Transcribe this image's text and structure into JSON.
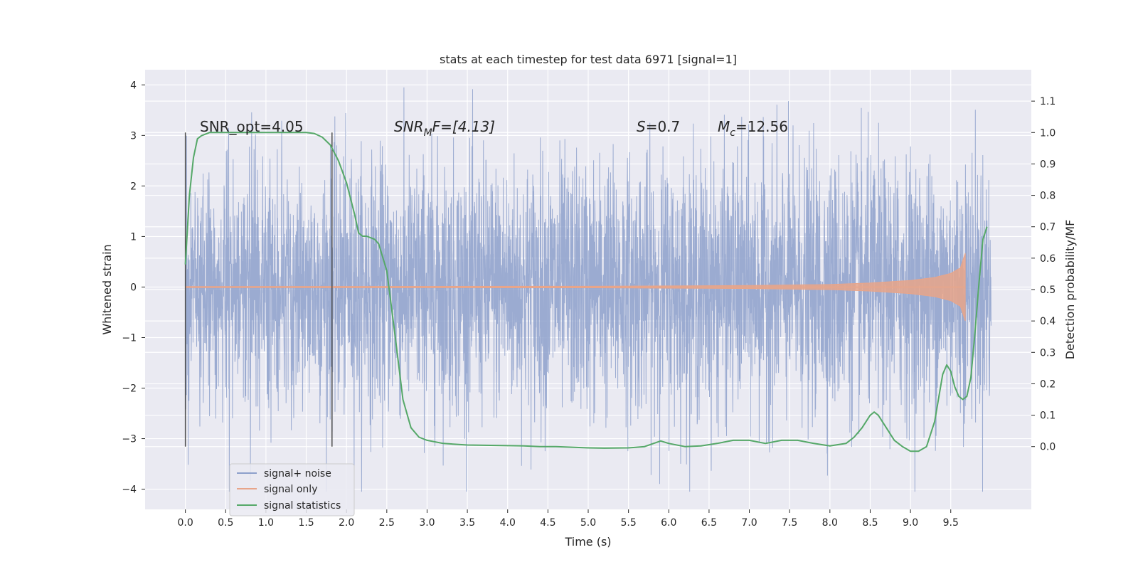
{
  "chart_data": {
    "type": "line",
    "title": "stats at each timestep for test data 6971 [signal=1]",
    "xlabel": "Time (s)",
    "ylabel": "Whitened strain",
    "ylabel_right": "Detection probability/MF",
    "xlim": [
      -0.5,
      10.5
    ],
    "ylim": [
      -4.4,
      4.3
    ],
    "ylim_right": [
      -0.2,
      1.2
    ],
    "x_ticks": [
      "0.0",
      "0.5",
      "1.0",
      "1.5",
      "2.0",
      "2.5",
      "3.0",
      "3.5",
      "4.0",
      "4.5",
      "5.0",
      "5.5",
      "6.0",
      "6.5",
      "7.0",
      "7.5",
      "8.0",
      "8.5",
      "9.0",
      "9.5"
    ],
    "y_ticks": [
      "4",
      "3",
      "2",
      "1",
      "0",
      "−1",
      "−2",
      "−3",
      "−4"
    ],
    "y_ticks_right": [
      "1.1",
      "1.0",
      "0.9",
      "0.8",
      "0.7",
      "0.6",
      "0.5",
      "0.4",
      "0.3",
      "0.2",
      "0.1",
      "0.0"
    ],
    "grid": true,
    "legend_position": "lower-left",
    "annotations": {
      "snr_opt": "SNR_opt=4.05",
      "snr_mf_main": "SNR",
      "snr_mf_sub": "M",
      "snr_mf_rest": "F=[4.13]",
      "s_label": "S",
      "s_value": "=0.7",
      "mc_label": "M",
      "mc_sub": "c",
      "mc_value": "=12.56"
    },
    "markers": {
      "vertical_lines_at_s": [
        0.0,
        1.82
      ]
    },
    "series": [
      {
        "name": "signal+ noise",
        "color": "#8da0cb",
        "description_values": {
          "x_range": [
            0.0,
            10.0
          ],
          "typical_amplitude": 2.0,
          "peak_max": 3.95,
          "peak_min": -4.05
        }
      },
      {
        "name": "signal only",
        "color": "#e8a58a",
        "x": [
          0.0,
          5.0,
          7.0,
          8.0,
          8.5,
          9.0,
          9.3,
          9.5,
          9.62,
          9.68
        ],
        "envelope": [
          0.01,
          0.015,
          0.03,
          0.05,
          0.08,
          0.13,
          0.19,
          0.27,
          0.38,
          0.67
        ]
      },
      {
        "name": "signal statistics",
        "color": "#55a868",
        "x": [
          0.0,
          0.05,
          0.1,
          0.15,
          0.2,
          0.3,
          0.5,
          1.0,
          1.5,
          1.6,
          1.7,
          1.8,
          1.9,
          2.0,
          2.1,
          2.15,
          2.2,
          2.25,
          2.3,
          2.35,
          2.4,
          2.5,
          2.6,
          2.7,
          2.8,
          2.9,
          3.0,
          3.2,
          3.5,
          4.0,
          4.2,
          4.4,
          4.6,
          5.0,
          5.2,
          5.5,
          5.7,
          5.9,
          6.0,
          6.2,
          6.4,
          6.6,
          6.8,
          7.0,
          7.2,
          7.4,
          7.6,
          7.8,
          8.0,
          8.2,
          8.3,
          8.4,
          8.5,
          8.55,
          8.6,
          8.7,
          8.8,
          8.9,
          9.0,
          9.1,
          9.2,
          9.3,
          9.4,
          9.45,
          9.5,
          9.55,
          9.6,
          9.65,
          9.7,
          9.75,
          9.8,
          9.85,
          9.9,
          9.95
        ],
        "y": [
          0.58,
          0.8,
          0.92,
          0.98,
          0.99,
          1.0,
          1.0,
          1.0,
          1.0,
          0.997,
          0.985,
          0.96,
          0.91,
          0.84,
          0.74,
          0.68,
          0.67,
          0.67,
          0.665,
          0.66,
          0.645,
          0.56,
          0.36,
          0.15,
          0.06,
          0.03,
          0.02,
          0.01,
          0.005,
          0.003,
          0.002,
          0.0,
          0.0,
          -0.004,
          -0.005,
          -0.004,
          0.0,
          0.018,
          0.01,
          0.0,
          0.002,
          0.01,
          0.02,
          0.02,
          0.01,
          0.02,
          0.02,
          0.01,
          0.002,
          0.01,
          0.03,
          0.06,
          0.1,
          0.11,
          0.1,
          0.06,
          0.02,
          0.0,
          -0.015,
          -0.015,
          0.0,
          0.08,
          0.23,
          0.26,
          0.24,
          0.19,
          0.16,
          0.15,
          0.16,
          0.22,
          0.36,
          0.52,
          0.66,
          0.7
        ]
      }
    ]
  }
}
